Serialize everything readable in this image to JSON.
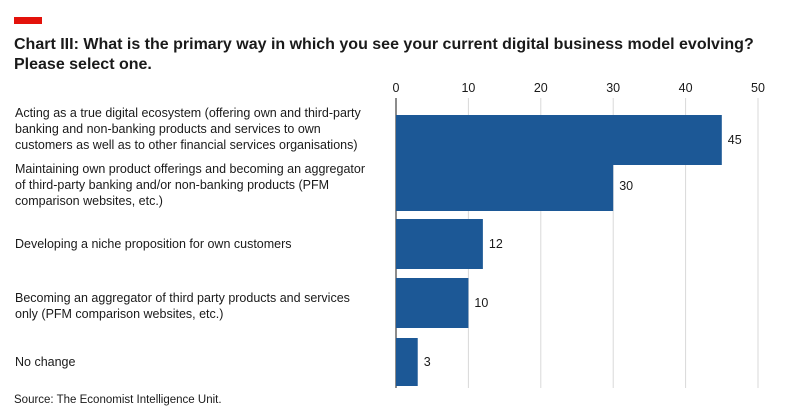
{
  "header": {
    "title": "Chart III: What is the primary way in which you see your current digital business model evolving? Please select one."
  },
  "footer": {
    "source": "Source: The Economist Intelligence Unit."
  },
  "colors": {
    "bar": "#1c5896",
    "accent": "#e3120b",
    "grid": "#d9d9d9"
  },
  "chart_data": {
    "type": "bar",
    "orientation": "horizontal",
    "title": "Chart III: What is the primary way in which you see your current digital business model evolving? Please select one.",
    "categories": [
      [
        "Acting as a true digital ecosystem (offering own and third-party",
        "banking and non-banking products and services to own",
        "customers as well as to other financial services organisations)"
      ],
      [
        "Maintaining own product offerings and becoming an aggregator",
        "of third-party banking and/or non-banking products (PFM",
        "comparison websites, etc.)"
      ],
      [
        "Developing a niche proposition for own customers"
      ],
      [
        "Becoming an aggregator of third party products and services",
        "only (PFM comparison websites, etc.)"
      ],
      [
        "No change"
      ]
    ],
    "values": [
      45,
      30,
      12,
      10,
      3
    ],
    "value_labels": [
      "45",
      "30",
      "12",
      "10",
      "3"
    ],
    "xlim": [
      0,
      50
    ],
    "xticks": [
      0,
      10,
      20,
      30,
      40,
      50
    ],
    "xtick_labels": [
      "0",
      "10",
      "20",
      "30",
      "40",
      "50"
    ],
    "axis_position": "top",
    "grid": true,
    "legend": "none"
  }
}
